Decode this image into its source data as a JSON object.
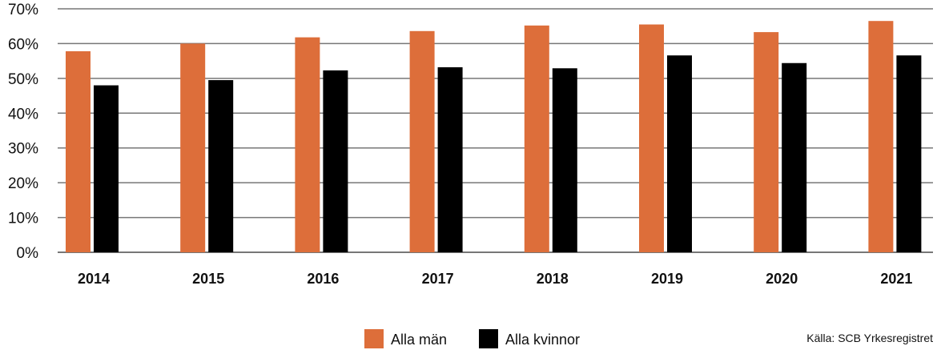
{
  "chart_data": {
    "type": "bar",
    "title": "",
    "xlabel": "",
    "ylabel": "",
    "ylim": [
      0,
      70
    ],
    "yticks": [
      "0%",
      "10%",
      "20%",
      "30%",
      "40%",
      "50%",
      "60%",
      "70%"
    ],
    "grid": true,
    "legend_position": "bottom",
    "categories": [
      "2014",
      "2015",
      "2016",
      "2017",
      "2018",
      "2019",
      "2020",
      "2021"
    ],
    "series": [
      {
        "name": "Alla män",
        "color": "#dd6e3a",
        "values": [
          57.8,
          60.0,
          61.8,
          63.6,
          65.2,
          65.5,
          63.3,
          66.5
        ]
      },
      {
        "name": "Alla kvinnor",
        "color": "#000000",
        "values": [
          48.0,
          49.5,
          52.3,
          53.2,
          52.9,
          56.6,
          54.4,
          56.6
        ]
      }
    ],
    "source": "Källa: SCB Yrkesregistret"
  }
}
